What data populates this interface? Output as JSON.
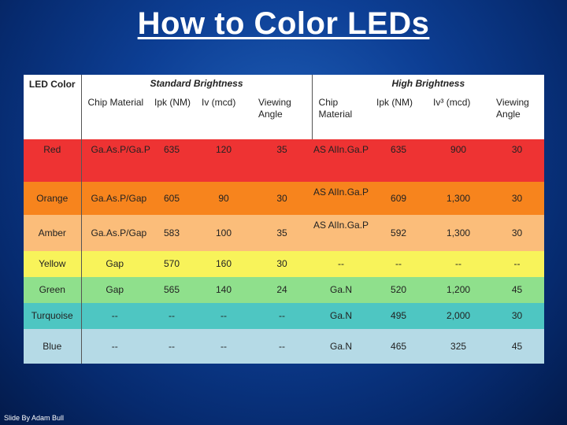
{
  "title": "How to Color LEDs",
  "headers": {
    "led_color": "LED Color",
    "standard": "Standard Brightness",
    "high": "High Brightness",
    "std_cols": [
      "Chip Material",
      "Ipk (NM)",
      "Iv (mcd)",
      "Viewing Angle"
    ],
    "high_cols": [
      "Chip Material",
      "Ipk (NM)",
      "Iv³ (mcd)",
      "Viewing Angle"
    ]
  },
  "rows": [
    {
      "color": "Red",
      "bg": "#ee3333",
      "std": [
        "Ga.As.P/Ga.P",
        "635",
        "120",
        "35"
      ],
      "high": [
        "AS AlIn.Ga.P",
        "635",
        "900",
        "30"
      ]
    },
    {
      "color": "Orange",
      "bg": "#f7841d",
      "std": [
        "Ga.As.P/Gap",
        "605",
        "90",
        "30"
      ],
      "high": [
        "AS AlIn.Ga.P",
        "609",
        "1,300",
        "30"
      ]
    },
    {
      "color": "Amber",
      "bg": "#fbbd7a",
      "std": [
        "Ga.As.P/Gap",
        "583",
        "100",
        "35"
      ],
      "high": [
        "AS AlIn.Ga.P",
        "592",
        "1,300",
        "30"
      ]
    },
    {
      "color": "Yellow",
      "bg": "#f8f35a",
      "std": [
        "Gap",
        "570",
        "160",
        "30"
      ],
      "high": [
        "--",
        "--",
        "--",
        "--"
      ]
    },
    {
      "color": "Green",
      "bg": "#8fe08c",
      "std": [
        "Gap",
        "565",
        "140",
        "24"
      ],
      "high": [
        "Ga.N",
        "520",
        "1,200",
        "45"
      ]
    },
    {
      "color": "Turquoise",
      "bg": "#4ec6c2",
      "std": [
        "--",
        "--",
        "--",
        "--"
      ],
      "high": [
        "Ga.N",
        "495",
        "2,000",
        "30"
      ]
    },
    {
      "color": "Blue",
      "bg": "#b5dae6",
      "std": [
        "--",
        "--",
        "--",
        "--"
      ],
      "high": [
        "Ga.N",
        "465",
        "325",
        "45"
      ]
    }
  ],
  "footer": "Slide By Adam Bull"
}
